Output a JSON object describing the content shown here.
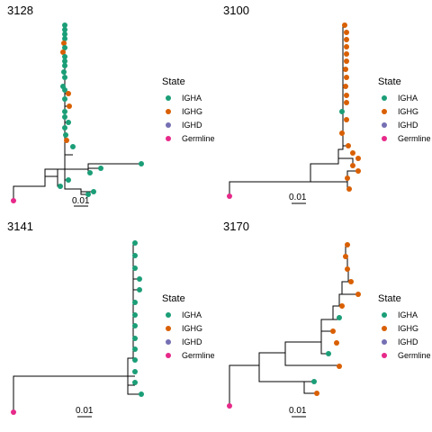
{
  "legend": {
    "title": "State",
    "items": [
      {
        "label": "IGHA",
        "color": "#1b9e77"
      },
      {
        "label": "IGHG",
        "color": "#d95f02"
      },
      {
        "label": "IGHD",
        "color": "#7570b3"
      },
      {
        "label": "Germline",
        "color": "#e7298a"
      }
    ]
  },
  "panels": [
    {
      "title": "3128",
      "scale_label": "0.01"
    },
    {
      "title": "3100",
      "scale_label": "0.01"
    },
    {
      "title": "3141",
      "scale_label": "0.01"
    },
    {
      "title": "3170",
      "scale_label": "0.01"
    }
  ]
}
